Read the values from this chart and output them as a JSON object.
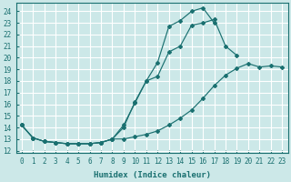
{
  "xlabel": "Humidex (Indice chaleur)",
  "bg_color": "#cce8e8",
  "line_color": "#1a7070",
  "grid_color": "#ffffff",
  "xlim": [
    -0.5,
    23.5
  ],
  "ylim": [
    11.8,
    24.7
  ],
  "yticks": [
    12,
    13,
    14,
    15,
    16,
    17,
    18,
    19,
    20,
    21,
    22,
    23,
    24
  ],
  "xticks": [
    0,
    1,
    2,
    3,
    4,
    5,
    6,
    7,
    8,
    9,
    10,
    11,
    12,
    13,
    14,
    15,
    16,
    17,
    18,
    19,
    20,
    21,
    22,
    23
  ],
  "line1_x": [
    0,
    1,
    2,
    3,
    4,
    5,
    6,
    7,
    8,
    9,
    10,
    11,
    12,
    13,
    14,
    15,
    16,
    17,
    18,
    19,
    20,
    21,
    22,
    23
  ],
  "line1_y": [
    14.2,
    13.1,
    12.8,
    12.7,
    12.6,
    12.6,
    12.6,
    12.7,
    13.0,
    14.2,
    16.1,
    18.0,
    19.6,
    22.7,
    23.2,
    24.0,
    24.3,
    23.0,
    null,
    null,
    null,
    null,
    null,
    null
  ],
  "line2_x": [
    0,
    1,
    2,
    3,
    4,
    5,
    6,
    7,
    8,
    9,
    10,
    11,
    12,
    13,
    14,
    15,
    16,
    17,
    18,
    19,
    20,
    21,
    22,
    23
  ],
  "line2_y": [
    14.2,
    13.1,
    12.8,
    12.7,
    12.6,
    12.6,
    12.6,
    12.7,
    13.0,
    14.0,
    16.2,
    18.0,
    18.4,
    20.5,
    21.0,
    22.8,
    23.0,
    23.3,
    21.0,
    20.2,
    null,
    null,
    null,
    null
  ],
  "line3_x": [
    0,
    1,
    2,
    3,
    4,
    5,
    6,
    7,
    8,
    9,
    10,
    11,
    12,
    13,
    14,
    15,
    16,
    17,
    18,
    19,
    20,
    21,
    22,
    23
  ],
  "line3_y": [
    14.2,
    13.1,
    12.8,
    12.7,
    12.6,
    12.6,
    12.6,
    12.7,
    13.0,
    13.0,
    13.2,
    13.4,
    13.7,
    14.2,
    14.8,
    15.5,
    16.5,
    17.6,
    18.5,
    19.1,
    19.5,
    19.2,
    19.3,
    19.2
  ]
}
